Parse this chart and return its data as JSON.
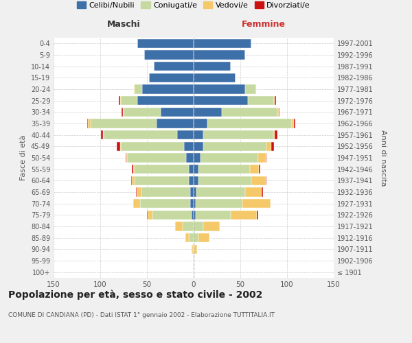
{
  "age_groups": [
    "100+",
    "95-99",
    "90-94",
    "85-89",
    "80-84",
    "75-79",
    "70-74",
    "65-69",
    "60-64",
    "55-59",
    "50-54",
    "45-49",
    "40-44",
    "35-39",
    "30-34",
    "25-29",
    "20-24",
    "15-19",
    "10-14",
    "5-9",
    "0-4"
  ],
  "birth_years": [
    "≤ 1901",
    "1902-1906",
    "1907-1911",
    "1912-1916",
    "1917-1921",
    "1922-1926",
    "1927-1931",
    "1932-1936",
    "1937-1941",
    "1942-1946",
    "1947-1951",
    "1952-1956",
    "1957-1961",
    "1962-1966",
    "1967-1971",
    "1972-1976",
    "1977-1981",
    "1982-1986",
    "1987-1991",
    "1992-1996",
    "1997-2001"
  ],
  "males": {
    "celibi": [
      0,
      0,
      0,
      0,
      0,
      2,
      4,
      4,
      5,
      5,
      8,
      10,
      18,
      40,
      35,
      60,
      55,
      48,
      43,
      53,
      60
    ],
    "coniugati": [
      0,
      0,
      1,
      5,
      12,
      42,
      53,
      52,
      58,
      58,
      63,
      68,
      78,
      70,
      40,
      18,
      8,
      0,
      0,
      0,
      0
    ],
    "vedovi": [
      0,
      0,
      1,
      4,
      8,
      5,
      8,
      5,
      3,
      2,
      1,
      1,
      1,
      3,
      1,
      1,
      1,
      0,
      0,
      0,
      0
    ],
    "divorziati": [
      0,
      0,
      0,
      0,
      0,
      1,
      0,
      1,
      1,
      1,
      1,
      3,
      2,
      1,
      1,
      1,
      0,
      0,
      0,
      0,
      0
    ]
  },
  "females": {
    "nubili": [
      0,
      0,
      0,
      0,
      0,
      2,
      2,
      3,
      5,
      5,
      7,
      10,
      10,
      15,
      30,
      58,
      55,
      45,
      40,
      55,
      62
    ],
    "coniugate": [
      0,
      0,
      1,
      5,
      10,
      38,
      50,
      52,
      57,
      55,
      62,
      68,
      75,
      90,
      60,
      28,
      12,
      0,
      0,
      0,
      0
    ],
    "vedove": [
      0,
      1,
      3,
      12,
      18,
      28,
      30,
      18,
      15,
      10,
      8,
      5,
      2,
      2,
      1,
      1,
      0,
      0,
      0,
      0,
      0
    ],
    "divorziate": [
      0,
      0,
      0,
      0,
      0,
      1,
      0,
      1,
      1,
      1,
      1,
      3,
      3,
      2,
      1,
      1,
      0,
      0,
      0,
      0,
      0
    ]
  },
  "colors": {
    "celibi": "#3d6fa8",
    "coniugati": "#c5d9a0",
    "vedovi": "#f5c96a",
    "divorziati": "#cc1111"
  },
  "xlim": 150,
  "title": "Popolazione per età, sesso e stato civile - 2002",
  "subtitle": "COMUNE DI CANDIANA (PD) - Dati ISTAT 1° gennaio 2002 - Elaborazione TUTTITALIA.IT",
  "ylabel_left": "Fasce di età",
  "ylabel_right": "Anni di nascita",
  "xlabel_left": "Maschi",
  "xlabel_right": "Femmine",
  "bg_color": "#f0f0f0",
  "plot_bg": "#ffffff"
}
